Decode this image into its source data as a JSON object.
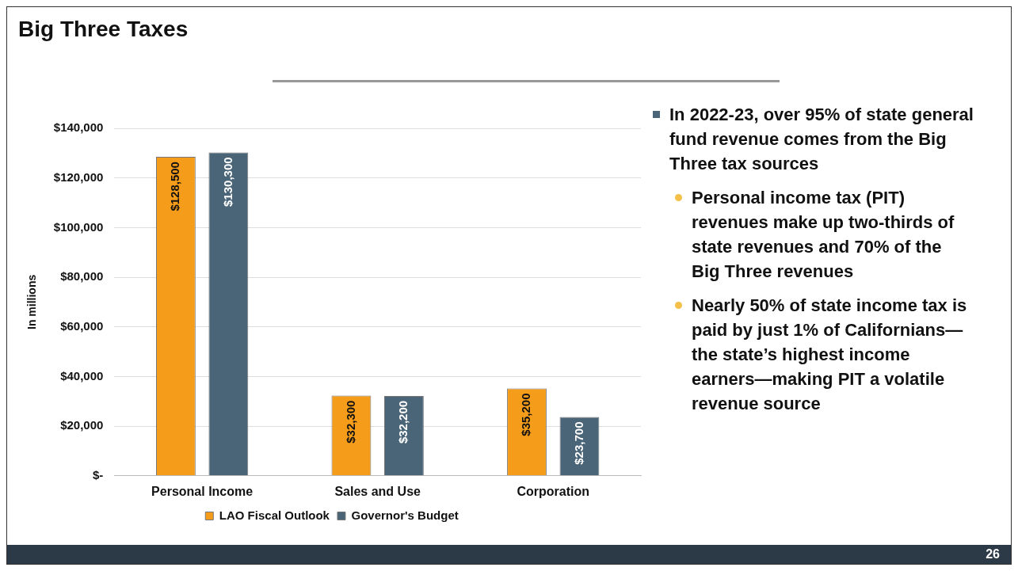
{
  "chart_data": {
    "type": "bar",
    "title": "Big Three Taxes",
    "ylabel": "In millions",
    "categories": [
      "Personal Income",
      "Sales and Use",
      "Corporation"
    ],
    "series": [
      {
        "name": "LAO Fiscal Outlook",
        "color": "#f59c1a",
        "values": [
          128500,
          32300,
          35200
        ],
        "value_labels": [
          "$128,500",
          "$32,300",
          "$35,200"
        ]
      },
      {
        "name": "Governor's Budget",
        "color": "#4b6578",
        "values": [
          130300,
          32200,
          23700
        ],
        "value_labels": [
          "$130,300",
          "$32,200",
          "$23,700"
        ]
      }
    ],
    "ylim": [
      0,
      140000
    ],
    "yticks": [
      {
        "value": 0,
        "label": "$-"
      },
      {
        "value": 20000,
        "label": "$20,000"
      },
      {
        "value": 40000,
        "label": "$40,000"
      },
      {
        "value": 60000,
        "label": "$60,000"
      },
      {
        "value": 80000,
        "label": "$80,000"
      },
      {
        "value": 100000,
        "label": "$100,000"
      },
      {
        "value": 120000,
        "label": "$120,000"
      },
      {
        "value": 140000,
        "label": "$140,000"
      }
    ],
    "grid": "y",
    "legend": "bottom",
    "annotations": [
      "In 2022-23, over 95% of state general fund revenue comes from the Big Three tax sources",
      "Personal income tax (PIT) revenues make up two-thirds of state revenues and 70% of the Big Three revenues",
      "Nearly 50% of state income tax is paid by just 1% of Californians—the state’s highest income earners—making PIT a volatile revenue source",
      "26"
    ]
  }
}
